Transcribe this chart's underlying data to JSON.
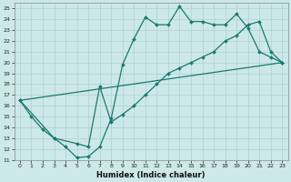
{
  "title": "",
  "xlabel": "Humidex (Indice chaleur)",
  "xlim": [
    -0.5,
    23.5
  ],
  "ylim": [
    11,
    25.5
  ],
  "xticks": [
    0,
    1,
    2,
    3,
    4,
    5,
    6,
    7,
    8,
    9,
    10,
    11,
    12,
    13,
    14,
    15,
    16,
    17,
    18,
    19,
    20,
    21,
    22,
    23
  ],
  "yticks": [
    11,
    12,
    13,
    14,
    15,
    16,
    17,
    18,
    19,
    20,
    21,
    22,
    23,
    24,
    25
  ],
  "bg_color": "#cce8e8",
  "grid_color": "#b0d0d0",
  "line_color": "#1a7a6e",
  "lines": [
    {
      "x": [
        0,
        1,
        2,
        3,
        4,
        5,
        6,
        7,
        8,
        9,
        10,
        11,
        12,
        13,
        14,
        15,
        16,
        17,
        18,
        19,
        20,
        21,
        22,
        23
      ],
      "y": [
        16.5,
        15,
        13.8,
        13,
        12.2,
        11.2,
        11.3,
        12.2,
        14.8,
        19.8,
        22.2,
        24.2,
        23.5,
        23.5,
        25.2,
        23.8,
        23.8,
        23.5,
        23.5,
        24.5,
        23.2,
        21,
        20.5,
        20
      ],
      "has_markers": true
    },
    {
      "x": [
        0,
        3,
        5,
        6,
        7,
        8,
        9,
        10,
        11,
        12,
        13,
        14,
        15,
        16,
        17,
        18,
        19,
        20,
        21,
        22,
        23
      ],
      "y": [
        16.5,
        13,
        12.5,
        12.2,
        17.8,
        14.5,
        15.2,
        16,
        17,
        18,
        19,
        19.5,
        20,
        20.5,
        21,
        22,
        22.5,
        23.5,
        23.8,
        21,
        20
      ],
      "has_markers": true
    },
    {
      "x": [
        0,
        23
      ],
      "y": [
        16.5,
        20
      ],
      "has_markers": false
    }
  ]
}
